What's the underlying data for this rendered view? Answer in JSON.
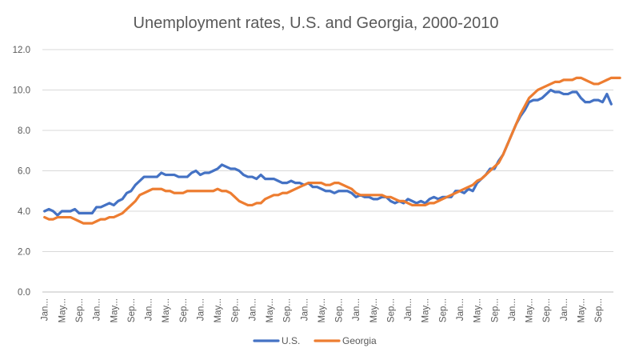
{
  "chart_data": {
    "type": "line",
    "title": "Unemployment  rates, U.S. and Georgia, 2000-2010",
    "xlabel": "",
    "ylabel": "",
    "ylim": [
      0,
      12
    ],
    "yticks": [
      0,
      2,
      4,
      6,
      8,
      10,
      12
    ],
    "ytick_labels": [
      "0.0",
      "2.0",
      "4.0",
      "6.0",
      "8.0",
      "10.0",
      "12.0"
    ],
    "grid": true,
    "legend": "bottom-center",
    "x_count": 132,
    "x_ticks": [
      {
        "index": 0,
        "label": "Jan..."
      },
      {
        "index": 4,
        "label": "May..."
      },
      {
        "index": 8,
        "label": "Sep..."
      },
      {
        "index": 12,
        "label": "Jan..."
      },
      {
        "index": 16,
        "label": "May..."
      },
      {
        "index": 20,
        "label": "Sep..."
      },
      {
        "index": 24,
        "label": "Jan..."
      },
      {
        "index": 28,
        "label": "May..."
      },
      {
        "index": 32,
        "label": "Sep..."
      },
      {
        "index": 36,
        "label": "Jan..."
      },
      {
        "index": 40,
        "label": "May..."
      },
      {
        "index": 44,
        "label": "Sep..."
      },
      {
        "index": 48,
        "label": "Jan..."
      },
      {
        "index": 52,
        "label": "May..."
      },
      {
        "index": 56,
        "label": "Sep..."
      },
      {
        "index": 60,
        "label": "Jan..."
      },
      {
        "index": 64,
        "label": "May..."
      },
      {
        "index": 68,
        "label": "Sep..."
      },
      {
        "index": 72,
        "label": "Jan..."
      },
      {
        "index": 76,
        "label": "May..."
      },
      {
        "index": 80,
        "label": "Sep..."
      },
      {
        "index": 84,
        "label": "Jan..."
      },
      {
        "index": 88,
        "label": "May..."
      },
      {
        "index": 92,
        "label": "Sep..."
      },
      {
        "index": 96,
        "label": "Jan..."
      },
      {
        "index": 100,
        "label": "May..."
      },
      {
        "index": 104,
        "label": "Sep..."
      },
      {
        "index": 108,
        "label": "Jan..."
      },
      {
        "index": 112,
        "label": "May..."
      },
      {
        "index": 116,
        "label": "Sep..."
      },
      {
        "index": 120,
        "label": "Jan..."
      },
      {
        "index": 124,
        "label": "May..."
      },
      {
        "index": 128,
        "label": "Sep..."
      }
    ],
    "series": [
      {
        "name": "U.S.",
        "color": "#4472C4",
        "values": [
          4.0,
          4.1,
          4.0,
          3.8,
          4.0,
          4.0,
          4.0,
          4.1,
          3.9,
          3.9,
          3.9,
          3.9,
          4.2,
          4.2,
          4.3,
          4.4,
          4.3,
          4.5,
          4.6,
          4.9,
          5.0,
          5.3,
          5.5,
          5.7,
          5.7,
          5.7,
          5.7,
          5.9,
          5.8,
          5.8,
          5.8,
          5.7,
          5.7,
          5.7,
          5.9,
          6.0,
          5.8,
          5.9,
          5.9,
          6.0,
          6.1,
          6.3,
          6.2,
          6.1,
          6.1,
          6.0,
          5.8,
          5.7,
          5.7,
          5.6,
          5.8,
          5.6,
          5.6,
          5.6,
          5.5,
          5.4,
          5.4,
          5.5,
          5.4,
          5.4,
          5.3,
          5.4,
          5.2,
          5.2,
          5.1,
          5.0,
          5.0,
          4.9,
          5.0,
          5.0,
          5.0,
          4.9,
          4.7,
          4.8,
          4.7,
          4.7,
          4.6,
          4.6,
          4.7,
          4.7,
          4.5,
          4.4,
          4.5,
          4.4,
          4.6,
          4.5,
          4.4,
          4.5,
          4.4,
          4.6,
          4.7,
          4.6,
          4.7,
          4.7,
          4.7,
          5.0,
          5.0,
          4.9,
          5.1,
          5.0,
          5.4,
          5.6,
          5.8,
          6.1,
          6.1,
          6.5,
          6.8,
          7.3,
          7.8,
          8.3,
          8.7,
          9.0,
          9.4,
          9.5,
          9.5,
          9.6,
          9.8,
          10.0,
          9.9,
          9.9,
          9.8,
          9.8,
          9.9,
          9.9,
          9.6,
          9.4,
          9.4,
          9.5,
          9.5,
          9.4,
          9.8,
          9.3
        ]
      },
      {
        "name": "Georgia",
        "color": "#ED7D31",
        "values": [
          3.7,
          3.6,
          3.6,
          3.7,
          3.7,
          3.7,
          3.7,
          3.6,
          3.5,
          3.4,
          3.4,
          3.4,
          3.5,
          3.6,
          3.6,
          3.7,
          3.7,
          3.8,
          3.9,
          4.1,
          4.3,
          4.5,
          4.8,
          4.9,
          5.0,
          5.1,
          5.1,
          5.1,
          5.0,
          5.0,
          4.9,
          4.9,
          4.9,
          5.0,
          5.0,
          5.0,
          5.0,
          5.0,
          5.0,
          5.0,
          5.1,
          5.0,
          5.0,
          4.9,
          4.7,
          4.5,
          4.4,
          4.3,
          4.3,
          4.4,
          4.4,
          4.6,
          4.7,
          4.8,
          4.8,
          4.9,
          4.9,
          5.0,
          5.1,
          5.2,
          5.3,
          5.4,
          5.4,
          5.4,
          5.4,
          5.3,
          5.3,
          5.4,
          5.4,
          5.3,
          5.2,
          5.1,
          4.9,
          4.8,
          4.8,
          4.8,
          4.8,
          4.8,
          4.8,
          4.7,
          4.7,
          4.6,
          4.5,
          4.5,
          4.4,
          4.3,
          4.3,
          4.3,
          4.3,
          4.4,
          4.4,
          4.5,
          4.6,
          4.7,
          4.8,
          4.9,
          5.0,
          5.1,
          5.2,
          5.3,
          5.5,
          5.6,
          5.8,
          6.0,
          6.2,
          6.4,
          6.8,
          7.3,
          7.8,
          8.3,
          8.8,
          9.2,
          9.6,
          9.8,
          10.0,
          10.1,
          10.2,
          10.3,
          10.4,
          10.4,
          10.5,
          10.5,
          10.5,
          10.6,
          10.6,
          10.5,
          10.4,
          10.3,
          10.3,
          10.4,
          10.5,
          10.6,
          10.6,
          10.6
        ]
      }
    ]
  }
}
